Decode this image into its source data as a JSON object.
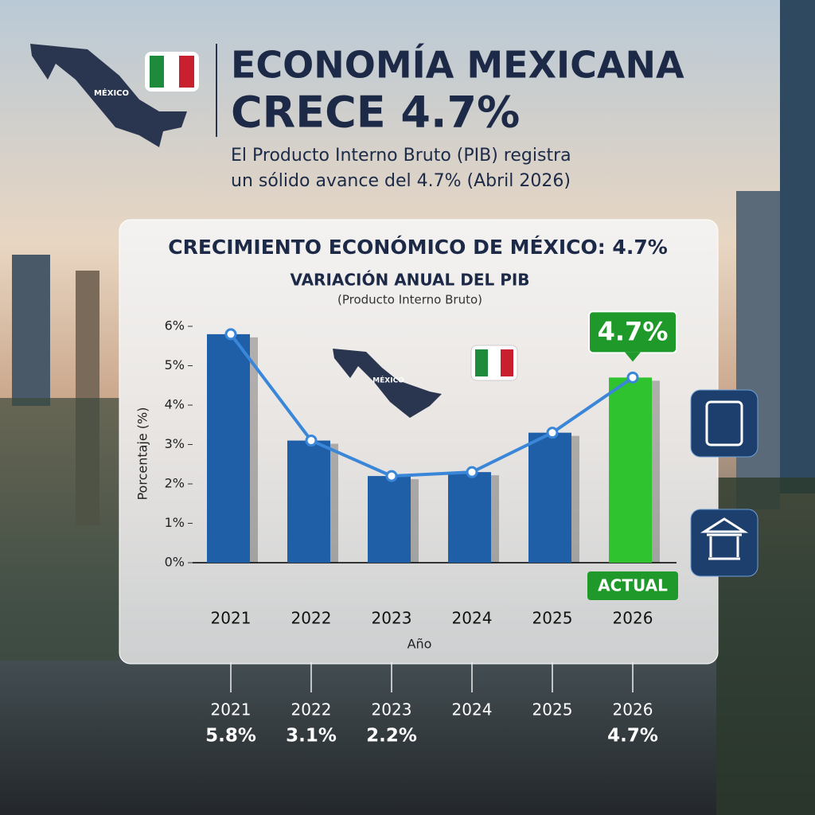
{
  "header": {
    "title_line1": "ECONOMÍA MEXICANA",
    "title_line2": "CRECE 4.7%",
    "subtitle_line1": "El Producto Interno Bruto (PIB) registra",
    "subtitle_line2": "un sólido avance del 4.7% (Abril 2026)",
    "map_label": "MÉXICO"
  },
  "chart_data": {
    "type": "bar",
    "title": "CRECIMIENTO ECONÓMICO DE MÉXICO: 4.7%",
    "subtitle": "VARIACIÓN ANUAL DEL PIB",
    "subtitle2": "(Producto Interno Bruto)",
    "map_label": "MÉXICO",
    "ylabel": "Porcentaje (%)",
    "xlabel": "Año",
    "annotation": "ACTUAL",
    "categories": [
      "2021",
      "2022",
      "2023",
      "2024",
      "2025",
      "2026"
    ],
    "values": [
      5.8,
      3.1,
      2.2,
      2.3,
      3.3,
      4.7
    ],
    "value_labels": [
      "5.8%",
      "3.1%",
      "2.2%",
      null,
      null,
      "4.7%"
    ],
    "colors": [
      "#1f5fa8",
      "#1f5fa8",
      "#1f5fa8",
      "#1f5fa8",
      "#1f5fa8",
      "#2fc42f"
    ],
    "line_color": "#3a86d8",
    "ylim": [
      0,
      6
    ],
    "yticks": [
      {
        "value": 0,
        "label": "0%"
      },
      {
        "value": 1,
        "label": "1%"
      },
      {
        "value": 2,
        "label": "2%"
      },
      {
        "value": 3,
        "label": "3%"
      },
      {
        "value": 4,
        "label": "4%"
      },
      {
        "value": 5,
        "label": "5%"
      },
      {
        "value": 6,
        "label": "6%"
      }
    ]
  }
}
